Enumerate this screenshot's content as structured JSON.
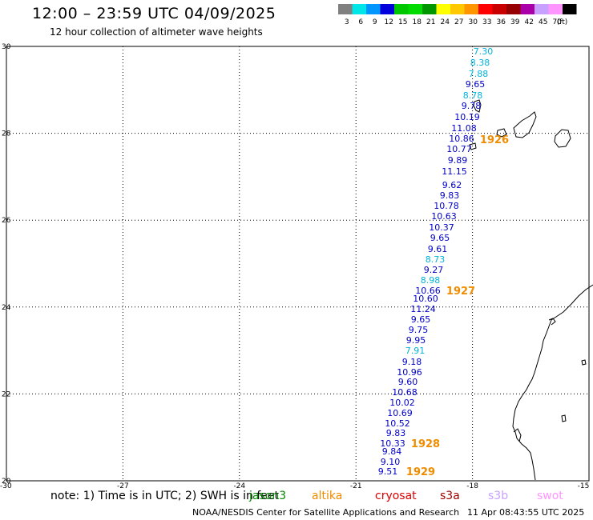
{
  "header": {
    "title": "12:00 – 23:59 UTC 04/09/2025",
    "subtitle": "12 hour collection of altimeter wave heights"
  },
  "color_scale": {
    "unit": "(ft)",
    "bins": [
      {
        "label": "3",
        "color": "#808080"
      },
      {
        "label": "6",
        "color": "#00e5e5"
      },
      {
        "label": "9",
        "color": "#0096ff"
      },
      {
        "label": "12",
        "color": "#0000dd"
      },
      {
        "label": "15",
        "color": "#00c800"
      },
      {
        "label": "18",
        "color": "#00dc00"
      },
      {
        "label": "21",
        "color": "#009600"
      },
      {
        "label": "24",
        "color": "#ffff00"
      },
      {
        "label": "27",
        "color": "#ffc800"
      },
      {
        "label": "30",
        "color": "#ff9600"
      },
      {
        "label": "33",
        "color": "#ff0000"
      },
      {
        "label": "36",
        "color": "#c80000"
      },
      {
        "label": "39",
        "color": "#960000"
      },
      {
        "label": "42",
        "color": "#aa00aa"
      },
      {
        "label": "45",
        "color": "#c8a0ff"
      },
      {
        "label": "70",
        "color": "#ff96ff"
      },
      {
        "label": "",
        "color": "#000000"
      }
    ]
  },
  "axes": {
    "lat_labels": [
      "30",
      "28",
      "26",
      "24",
      "22",
      "20"
    ],
    "lat_values": [
      30,
      28,
      26,
      24,
      22,
      20
    ],
    "lon_labels": [
      "-30",
      "-27",
      "-24",
      "-21",
      "-18",
      "-15"
    ],
    "lon_values": [
      -30,
      -27,
      -24,
      -21,
      -18,
      -15
    ]
  },
  "wave_heights": [
    {
      "value": "7.30",
      "color": "#00b4dc"
    },
    {
      "value": "8.38",
      "color": "#00b4dc"
    },
    {
      "value": "7.88",
      "color": "#00b4dc"
    },
    {
      "value": "9.65",
      "color": "#0000c8"
    },
    {
      "value": "8.78",
      "color": "#00b4dc"
    },
    {
      "value": "9.78",
      "color": "#0000c8"
    },
    {
      "value": "10.19",
      "color": "#0000c8"
    },
    {
      "value": "11.08",
      "color": "#0000c8"
    },
    {
      "value": "10.86",
      "color": "#0000c8"
    },
    {
      "value": "10.77",
      "color": "#0000c8"
    },
    {
      "value": "9.89",
      "color": "#0000c8"
    },
    {
      "value": "11.15",
      "color": "#0000c8"
    },
    {
      "value": "9.62",
      "color": "#0000c8"
    },
    {
      "value": "9.83",
      "color": "#0000c8"
    },
    {
      "value": "10.78",
      "color": "#0000c8"
    },
    {
      "value": "10.63",
      "color": "#0000c8"
    },
    {
      "value": "10.37",
      "color": "#0000c8"
    },
    {
      "value": "9.65",
      "color": "#0000c8"
    },
    {
      "value": "9.61",
      "color": "#0000c8"
    },
    {
      "value": "8.73",
      "color": "#00b4dc"
    },
    {
      "value": "9.27",
      "color": "#0000c8"
    },
    {
      "value": "8.98",
      "color": "#00b4dc"
    },
    {
      "value": "10.66",
      "color": "#0000c8"
    },
    {
      "value": "10.60",
      "color": "#0000c8"
    },
    {
      "value": "11.24",
      "color": "#0000c8"
    },
    {
      "value": "9.65",
      "color": "#0000c8"
    },
    {
      "value": "9.75",
      "color": "#0000c8"
    },
    {
      "value": "9.95",
      "color": "#0000c8"
    },
    {
      "value": "7.91",
      "color": "#00b4dc"
    },
    {
      "value": "9.18",
      "color": "#0000c8"
    },
    {
      "value": "10.96",
      "color": "#0000c8"
    },
    {
      "value": "9.60",
      "color": "#0000c8"
    },
    {
      "value": "10.68",
      "color": "#0000c8"
    },
    {
      "value": "10.02",
      "color": "#0000c8"
    },
    {
      "value": "10.69",
      "color": "#0000c8"
    },
    {
      "value": "10.52",
      "color": "#0000c8"
    },
    {
      "value": "9.83",
      "color": "#0000c8"
    },
    {
      "value": "10.33",
      "color": "#0000c8"
    },
    {
      "value": "9.84",
      "color": "#0000c8"
    },
    {
      "value": "9.10",
      "color": "#0000c8"
    },
    {
      "value": "9.51",
      "color": "#0000c8"
    }
  ],
  "time_marks": [
    {
      "label": "1926",
      "color": "#f08c00"
    },
    {
      "label": "1927",
      "color": "#f08c00"
    },
    {
      "label": "1928",
      "color": "#f08c00"
    },
    {
      "label": "1929",
      "color": "#f08c00"
    }
  ],
  "footer": {
    "note": "note: 1) Time is in UTC; 2) SWH is in feet",
    "satellites": [
      {
        "label": "jason3",
        "color": "#008c00"
      },
      {
        "label": "altika",
        "color": "#f08c00"
      },
      {
        "label": "cryosat",
        "color": "#e00000"
      },
      {
        "label": "s3a",
        "color": "#a00000"
      },
      {
        "label": "s3b",
        "color": "#c8a0ff"
      },
      {
        "label": "swot",
        "color": "#ff96ff"
      }
    ],
    "credit": "NOAA/NESDIS Center for Satellite Applications and Research",
    "timestamp": "11 Apr 08:43:55 UTC 2025"
  }
}
